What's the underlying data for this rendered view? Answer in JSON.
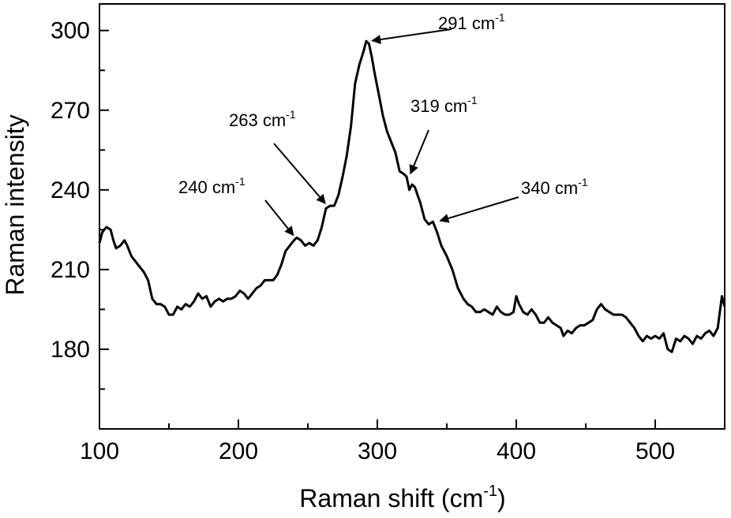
{
  "chart_data": {
    "type": "line",
    "title": "",
    "xlabel": "Raman shift (cm",
    "xlabel_sup": "-1",
    "xlabel_close": ")",
    "ylabel": "Raman intensity",
    "xlim": [
      100,
      550
    ],
    "ylim": [
      150,
      310
    ],
    "xticks": [
      100,
      200,
      300,
      400,
      500
    ],
    "xtick_labels": [
      "100",
      "200",
      "300",
      "400",
      "500"
    ],
    "yticks": [
      180,
      210,
      240,
      270,
      300
    ],
    "ytick_labels": [
      "180",
      "210",
      "240",
      "270",
      "300"
    ],
    "grid": false,
    "line_color": "#000000",
    "series": [
      {
        "points": [
          [
            100,
            220
          ],
          [
            102,
            224
          ],
          [
            105,
            226
          ],
          [
            108,
            225
          ],
          [
            110,
            221
          ],
          [
            112,
            218
          ],
          [
            115,
            219
          ],
          [
            118,
            221
          ],
          [
            120,
            219
          ],
          [
            123,
            215
          ],
          [
            126,
            213
          ],
          [
            129,
            211
          ],
          [
            132,
            209
          ],
          [
            135,
            206
          ],
          [
            138,
            199
          ],
          [
            141,
            197
          ],
          [
            144,
            197
          ],
          [
            147,
            196
          ],
          [
            150,
            193
          ],
          [
            153,
            193
          ],
          [
            156,
            196
          ],
          [
            159,
            195
          ],
          [
            162,
            197
          ],
          [
            165,
            196
          ],
          [
            168,
            198
          ],
          [
            171,
            201
          ],
          [
            174,
            199
          ],
          [
            177,
            200
          ],
          [
            180,
            196
          ],
          [
            183,
            198
          ],
          [
            186,
            199
          ],
          [
            189,
            198
          ],
          [
            192,
            199
          ],
          [
            195,
            199
          ],
          [
            198,
            200
          ],
          [
            201,
            202
          ],
          [
            204,
            201
          ],
          [
            207,
            199
          ],
          [
            210,
            201
          ],
          [
            213,
            203
          ],
          [
            216,
            204
          ],
          [
            219,
            206
          ],
          [
            222,
            206
          ],
          [
            225,
            206
          ],
          [
            228,
            208
          ],
          [
            231,
            212
          ],
          [
            234,
            217
          ],
          [
            237,
            219
          ],
          [
            240,
            221
          ],
          [
            242,
            222
          ],
          [
            245,
            221
          ],
          [
            248,
            219
          ],
          [
            251,
            220
          ],
          [
            254,
            219
          ],
          [
            257,
            221
          ],
          [
            260,
            226
          ],
          [
            263,
            233
          ],
          [
            266,
            234
          ],
          [
            269,
            234
          ],
          [
            272,
            238
          ],
          [
            275,
            245
          ],
          [
            278,
            253
          ],
          [
            281,
            264
          ],
          [
            284,
            280
          ],
          [
            287,
            287
          ],
          [
            290,
            292
          ],
          [
            292,
            296
          ],
          [
            294,
            295
          ],
          [
            296,
            290
          ],
          [
            298,
            284
          ],
          [
            301,
            276
          ],
          [
            304,
            268
          ],
          [
            307,
            262
          ],
          [
            310,
            258
          ],
          [
            313,
            254
          ],
          [
            316,
            247
          ],
          [
            319,
            246
          ],
          [
            321,
            245
          ],
          [
            323,
            240
          ],
          [
            325,
            242
          ],
          [
            327,
            241
          ],
          [
            329,
            238
          ],
          [
            331,
            235
          ],
          [
            334,
            229
          ],
          [
            337,
            227
          ],
          [
            340,
            228
          ],
          [
            343,
            224
          ],
          [
            346,
            219
          ],
          [
            350,
            215
          ],
          [
            354,
            210
          ],
          [
            358,
            203
          ],
          [
            362,
            199
          ],
          [
            365,
            197
          ],
          [
            368,
            196
          ],
          [
            371,
            194
          ],
          [
            374,
            194
          ],
          [
            377,
            195
          ],
          [
            380,
            194
          ],
          [
            383,
            193
          ],
          [
            386,
            196
          ],
          [
            389,
            194
          ],
          [
            392,
            193
          ],
          [
            395,
            193
          ],
          [
            398,
            194
          ],
          [
            400,
            200
          ],
          [
            402,
            197
          ],
          [
            405,
            194
          ],
          [
            408,
            193
          ],
          [
            411,
            195
          ],
          [
            414,
            193
          ],
          [
            417,
            190
          ],
          [
            420,
            190
          ],
          [
            423,
            192
          ],
          [
            426,
            190
          ],
          [
            429,
            189
          ],
          [
            432,
            188
          ],
          [
            434,
            185
          ],
          [
            437,
            187
          ],
          [
            440,
            186
          ],
          [
            443,
            188
          ],
          [
            446,
            189
          ],
          [
            449,
            189
          ],
          [
            452,
            190
          ],
          [
            455,
            191
          ],
          [
            458,
            195
          ],
          [
            461,
            197
          ],
          [
            464,
            195
          ],
          [
            467,
            194
          ],
          [
            470,
            193
          ],
          [
            473,
            193
          ],
          [
            476,
            193
          ],
          [
            479,
            192
          ],
          [
            482,
            190
          ],
          [
            485,
            188
          ],
          [
            488,
            185
          ],
          [
            491,
            183
          ],
          [
            494,
            185
          ],
          [
            497,
            184
          ],
          [
            500,
            185
          ],
          [
            503,
            184
          ],
          [
            506,
            186
          ],
          [
            509,
            180
          ],
          [
            512,
            179
          ],
          [
            515,
            184
          ],
          [
            518,
            183
          ],
          [
            521,
            185
          ],
          [
            524,
            184
          ],
          [
            527,
            182
          ],
          [
            530,
            185
          ],
          [
            533,
            184
          ],
          [
            536,
            186
          ],
          [
            539,
            187
          ],
          [
            542,
            185
          ],
          [
            545,
            188
          ],
          [
            548,
            200
          ],
          [
            550,
            196
          ]
        ]
      }
    ],
    "annotations": [
      {
        "text": "291 cm",
        "sup": "-1",
        "x": 294,
        "y": 296
      },
      {
        "text": "263 cm",
        "sup": "-1",
        "x": 264,
        "y": 234
      },
      {
        "text": "319 cm",
        "sup": "-1",
        "x": 323,
        "y": 245
      },
      {
        "text": "240 cm",
        "sup": "-1",
        "x": 241,
        "y": 222
      },
      {
        "text": "340 cm",
        "sup": "-1",
        "x": 343,
        "y": 228
      }
    ]
  }
}
